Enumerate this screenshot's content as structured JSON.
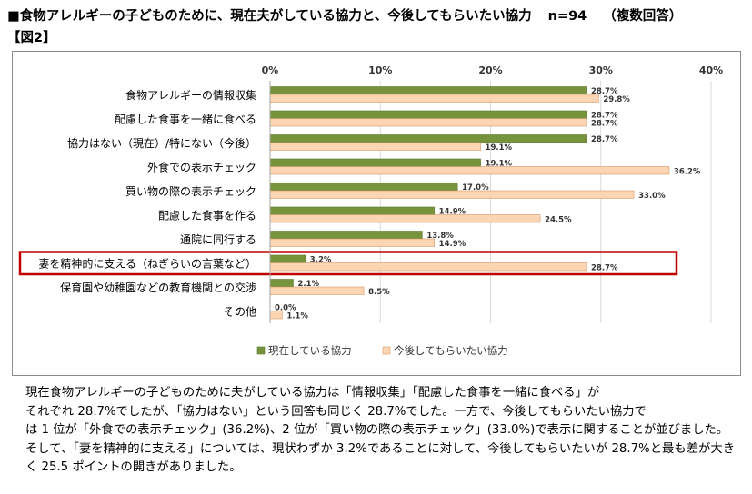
{
  "title": {
    "main": "■食物アレルギーの子どものために、現在夫がしている協力と、今後してもらいたい協力",
    "n": "n=94",
    "note": "（複数回答）",
    "figure": "【図2】"
  },
  "colors": {
    "current": "#77933c",
    "future": "#fcd5b5",
    "highlight": "#c00000",
    "grid": "#d9d9d9"
  },
  "chart_data": {
    "type": "bar",
    "orientation": "horizontal",
    "categories": [
      "食物アレルギーの情報収集",
      "配慮した食事を一緒に食べる",
      "協力はない（現在）/特にない（今後）",
      "外食での表示チェック",
      "買い物の際の表示チェック",
      "配慮した食事を作る",
      "通院に同行する",
      "妻を精神的に支える（ねぎらいの言葉など）",
      "保育園や幼稚園などの教育機関との交渉",
      "その他"
    ],
    "series": [
      {
        "name": "現在している協力",
        "values": [
          28.7,
          28.7,
          28.7,
          19.1,
          17.0,
          14.9,
          13.8,
          3.2,
          2.1,
          0.0
        ]
      },
      {
        "name": "今後してもらいたい協力",
        "values": [
          29.8,
          28.7,
          19.1,
          36.2,
          33.0,
          24.5,
          14.9,
          28.7,
          8.5,
          1.1
        ]
      }
    ],
    "xlim": [
      0,
      40
    ],
    "xticks": [
      "0%",
      "10%",
      "20%",
      "30%",
      "40%"
    ],
    "data_labels": [
      [
        "28.7%",
        "28.7%",
        "28.7%",
        "19.1%",
        "17.0%",
        "14.9%",
        "13.8%",
        "3.2%",
        "2.1%",
        "0.0%"
      ],
      [
        "29.8%",
        "28.7%",
        "19.1%",
        "36.2%",
        "33.0%",
        "24.5%",
        "14.9%",
        "28.7%",
        "8.5%",
        "1.1%"
      ]
    ],
    "highlighted_category": "妻を精神的に支える（ねぎらいの言葉など）",
    "legend_position": "bottom",
    "grid": true
  },
  "caption": [
    "現在食物アレルギーの子どものために夫がしている協力は「情報収集」「配慮した食事を一緒に食べる」が",
    "それぞれ 28.7%でしたが、「協力はない」という回答も同じく 28.7%でした。一方で、今後してもらいたい協力で",
    "は 1 位が「外食での表示チェック」(36.2%)、2 位が「買い物の際の表示チェック」(33.0%)で表示に関することが並びました。",
    "そして、「妻を精神的に支える」については、現状わずか 3.2%であることに対して、今後してもらいたいが 28.7%と最も差が大きく 25.5 ポイントの開きがありました。"
  ]
}
